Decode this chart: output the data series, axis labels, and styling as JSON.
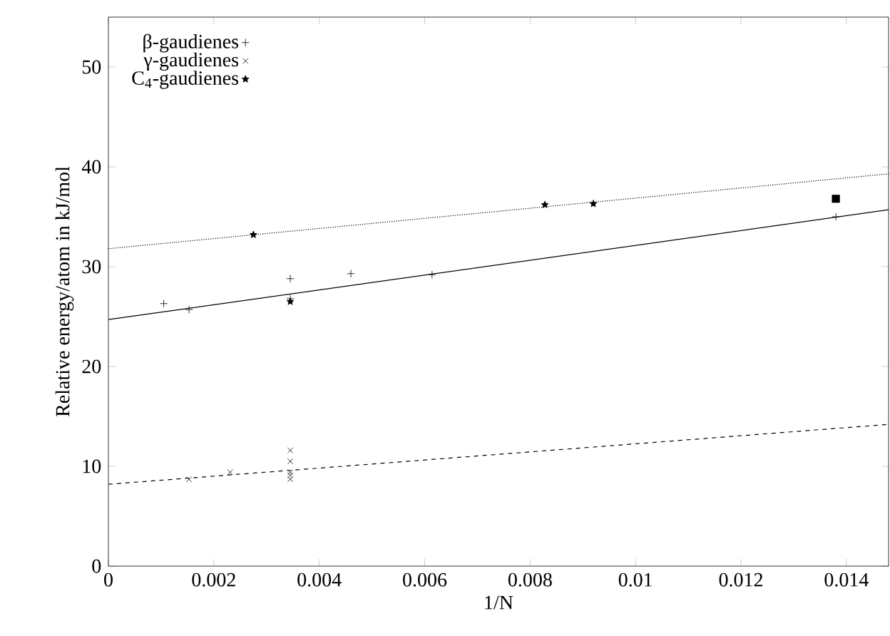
{
  "chart_data": {
    "type": "scatter",
    "xlabel": "1/N",
    "ylabel": "Relative energy/atom in kJ/mol",
    "xlim": [
      0,
      0.0148
    ],
    "ylim": [
      0,
      55
    ],
    "xticks": [
      0,
      0.002,
      0.004,
      0.006,
      0.008,
      0.01,
      0.012,
      0.014
    ],
    "yticks": [
      0,
      10,
      20,
      30,
      40,
      50
    ],
    "legend": "top left",
    "grid": false,
    "series": [
      {
        "name": "β-gaudienes",
        "color": "#000000",
        "marker": "plus",
        "x": [
          0.00105,
          0.00153,
          0.00345,
          0.00345,
          0.0046,
          0.00614,
          0.0138
        ],
        "values": [
          26.3,
          25.7,
          28.8,
          26.8,
          29.3,
          29.2,
          35.0
        ]
      },
      {
        "name": "γ-gaudienes",
        "color": "#000000",
        "marker": "cross",
        "x": [
          0.00153,
          0.00231,
          0.00345,
          0.00345,
          0.00345,
          0.00345,
          0.00345
        ],
        "values": [
          8.7,
          9.4,
          11.6,
          10.5,
          9.4,
          9.1,
          8.7
        ]
      },
      {
        "name": "C$_{4}$-gaudienes",
        "color": "#000000",
        "marker": "star",
        "x": [
          0.00275,
          0.00345,
          0.00828,
          0.0092
        ],
        "values": [
          33.2,
          26.5,
          36.2,
          36.3
        ]
      },
      {
        "color": "#000000",
        "marker": "square",
        "x": [
          0.0138
        ],
        "values": [
          36.8
        ]
      },
      {
        "type": "line",
        "color": "#000000",
        "line_style": "solid",
        "marker": "none",
        "x": [
          0,
          0.0148
        ],
        "values": [
          24.7,
          35.7
        ]
      },
      {
        "type": "line",
        "color": "#000000",
        "line_style": "dotted",
        "marker": "none",
        "x": [
          0,
          0.0148
        ],
        "values": [
          31.8,
          39.3
        ]
      },
      {
        "type": "line",
        "color": "#000000",
        "line_style": "dashed",
        "marker": "none",
        "x": [
          0,
          0.0148
        ],
        "values": [
          8.2,
          14.2
        ]
      }
    ]
  }
}
